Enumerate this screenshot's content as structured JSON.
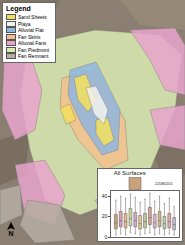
{
  "map": {
    "legend": {
      "title": "Legend",
      "items": [
        {
          "label": "Sand Sheets",
          "color": "#f3df5c"
        },
        {
          "label": "Playa",
          "color": "#f2f2ee"
        },
        {
          "label": "Alluvial Flat",
          "color": "#8fb6e0"
        },
        {
          "label": "Fan Skirts",
          "color": "#f3c08c"
        },
        {
          "label": "Alluvial Fans",
          "color": "#e7a3cb"
        },
        {
          "label": "Fan Piedmont",
          "color": "#d9ebb3"
        },
        {
          "label": "Fan Remnant",
          "color": "#b5ada3"
        }
      ]
    },
    "north_arrow": "N"
  },
  "chart_data": {
    "type": "box",
    "title": "All Surfaces",
    "categories": [
      null,
      null,
      null,
      null,
      null,
      null,
      null,
      null,
      null,
      null,
      null,
      null,
      null
    ],
    "series": [
      {
        "name": "22080201",
        "lower": [
          2,
          3,
          2,
          4,
          3,
          2,
          3,
          4,
          2,
          3,
          2,
          3,
          2
        ],
        "q1": [
          8,
          10,
          9,
          11,
          10,
          8,
          9,
          12,
          9,
          10,
          8,
          9,
          7
        ],
        "median": [
          14,
          16,
          15,
          18,
          16,
          13,
          15,
          19,
          14,
          16,
          13,
          15,
          12
        ],
        "q3": [
          22,
          25,
          23,
          28,
          24,
          21,
          23,
          29,
          22,
          25,
          20,
          23,
          19
        ],
        "upper": [
          36,
          40,
          38,
          42,
          39,
          34,
          37,
          43,
          35,
          40,
          33,
          38,
          30
        ]
      }
    ],
    "colors": [
      "#c9a27a",
      "#d9a0b8",
      "#e9b98a",
      "#c8d9a0",
      "#d4a6c9",
      "#e6c48f",
      "#b9c99a",
      "#d8a38f",
      "#e2b2c8",
      "#cfb48a",
      "#b8d0a8",
      "#e0a9a0",
      "#c7b9d6"
    ],
    "ylim": [
      0,
      45
    ],
    "yticks": [
      0,
      20,
      40
    ],
    "tick_labels": "y",
    "legend": "top",
    "grid": false
  }
}
